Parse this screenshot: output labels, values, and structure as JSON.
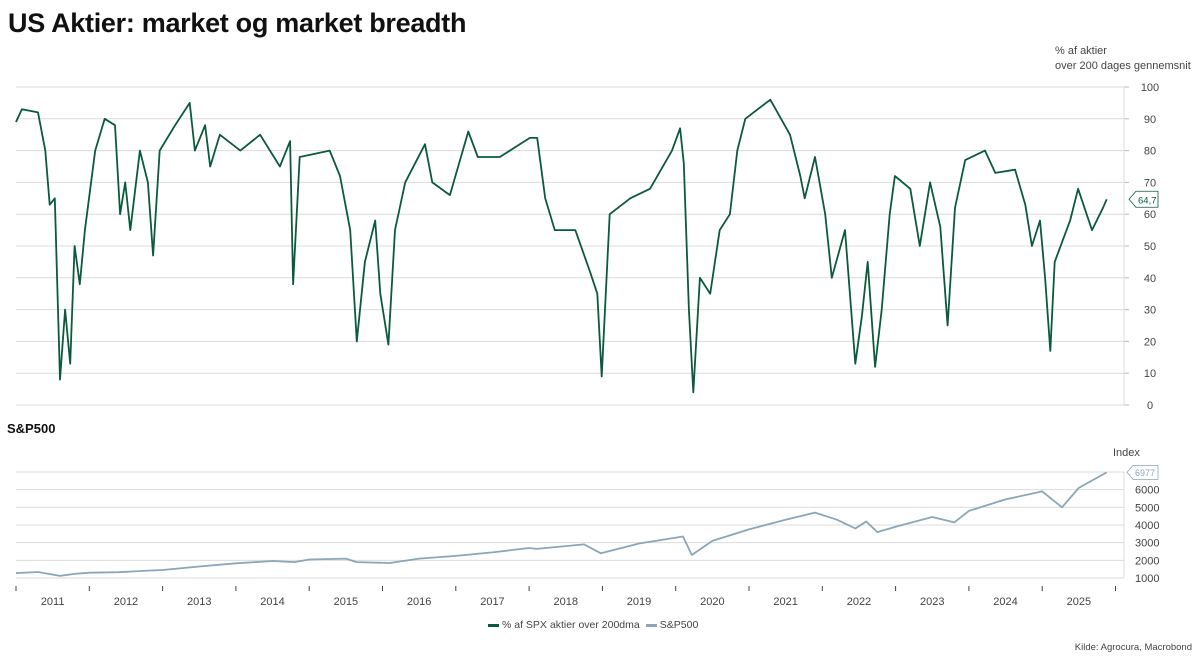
{
  "title": "US Aktier: market og market breadth",
  "source": "Kilde: Agrocura, Macrobond",
  "legend": [
    "% af SPX aktier over 200dma",
    "S&P500"
  ],
  "colors": {
    "breadth": "#0b5a3c",
    "spx": "#8aa6b8"
  },
  "chart_data": [
    {
      "type": "line",
      "title": "",
      "ylabel_line1": "% af aktier",
      "ylabel_line2": "over 200 dages gennemsnit",
      "ylim": [
        0,
        100
      ],
      "yticks": [
        0,
        10,
        20,
        30,
        40,
        50,
        60,
        70,
        80,
        90,
        100
      ],
      "grid": true,
      "last_value_label": "64,7",
      "series": [
        {
          "name": "% af SPX aktier over 200dma",
          "points": [
            [
              2011.0,
              89
            ],
            [
              2011.08,
              93
            ],
            [
              2011.3,
              92
            ],
            [
              2011.4,
              80
            ],
            [
              2011.46,
              63
            ],
            [
              2011.53,
              65
            ],
            [
              2011.6,
              8
            ],
            [
              2011.67,
              30
            ],
            [
              2011.74,
              13
            ],
            [
              2011.8,
              50
            ],
            [
              2011.87,
              38
            ],
            [
              2011.94,
              55
            ],
            [
              2012.08,
              80
            ],
            [
              2012.21,
              90
            ],
            [
              2012.35,
              88
            ],
            [
              2012.42,
              60
            ],
            [
              2012.49,
              70
            ],
            [
              2012.56,
              55
            ],
            [
              2012.69,
              80
            ],
            [
              2012.8,
              70
            ],
            [
              2012.87,
              47
            ],
            [
              2012.96,
              80
            ],
            [
              2013.17,
              88
            ],
            [
              2013.37,
              95
            ],
            [
              2013.44,
              80
            ],
            [
              2013.58,
              88
            ],
            [
              2013.65,
              75
            ],
            [
              2013.78,
              85
            ],
            [
              2014.06,
              80
            ],
            [
              2014.33,
              85
            ],
            [
              2014.6,
              75
            ],
            [
              2014.74,
              83
            ],
            [
              2014.78,
              38
            ],
            [
              2014.87,
              78
            ],
            [
              2015.28,
              80
            ],
            [
              2015.42,
              72
            ],
            [
              2015.56,
              55
            ],
            [
              2015.65,
              20
            ],
            [
              2015.76,
              45
            ],
            [
              2015.9,
              58
            ],
            [
              2015.97,
              35
            ],
            [
              2016.08,
              19
            ],
            [
              2016.17,
              55
            ],
            [
              2016.31,
              70
            ],
            [
              2016.58,
              82
            ],
            [
              2016.68,
              70
            ],
            [
              2016.92,
              66
            ],
            [
              2017.17,
              86
            ],
            [
              2017.3,
              78
            ],
            [
              2017.6,
              78
            ],
            [
              2018.01,
              84
            ],
            [
              2018.11,
              84
            ],
            [
              2018.22,
              65
            ],
            [
              2018.35,
              55
            ],
            [
              2018.63,
              55
            ],
            [
              2018.83,
              42
            ],
            [
              2018.93,
              35
            ],
            [
              2018.99,
              9
            ],
            [
              2019.1,
              60
            ],
            [
              2019.38,
              65
            ],
            [
              2019.65,
              68
            ],
            [
              2019.95,
              80
            ],
            [
              2020.06,
              87
            ],
            [
              2020.11,
              76
            ],
            [
              2020.18,
              30
            ],
            [
              2020.24,
              4
            ],
            [
              2020.33,
              40
            ],
            [
              2020.47,
              35
            ],
            [
              2020.6,
              55
            ],
            [
              2020.74,
              60
            ],
            [
              2020.84,
              80
            ],
            [
              2020.95,
              90
            ],
            [
              2021.29,
              96
            ],
            [
              2021.56,
              85
            ],
            [
              2021.7,
              72
            ],
            [
              2021.76,
              65
            ],
            [
              2021.9,
              78
            ],
            [
              2022.04,
              60
            ],
            [
              2022.13,
              40
            ],
            [
              2022.31,
              55
            ],
            [
              2022.45,
              13
            ],
            [
              2022.54,
              28
            ],
            [
              2022.62,
              45
            ],
            [
              2022.72,
              12
            ],
            [
              2022.81,
              30
            ],
            [
              2022.92,
              60
            ],
            [
              2022.99,
              72
            ],
            [
              2023.2,
              68
            ],
            [
              2023.33,
              50
            ],
            [
              2023.47,
              70
            ],
            [
              2023.61,
              56
            ],
            [
              2023.71,
              25
            ],
            [
              2023.81,
              62
            ],
            [
              2023.95,
              77
            ],
            [
              2024.22,
              80
            ],
            [
              2024.36,
              73
            ],
            [
              2024.63,
              74
            ],
            [
              2024.77,
              63
            ],
            [
              2024.86,
              50
            ],
            [
              2024.97,
              58
            ],
            [
              2025.04,
              40
            ],
            [
              2025.11,
              17
            ],
            [
              2025.17,
              45
            ],
            [
              2025.38,
              58
            ],
            [
              2025.49,
              68
            ],
            [
              2025.68,
              55
            ],
            [
              2025.83,
              62
            ],
            [
              2025.88,
              64.7
            ]
          ]
        }
      ]
    },
    {
      "type": "line",
      "title": "S&P500",
      "ylabel": "Index",
      "ylim": [
        1000,
        7000
      ],
      "yticks": [
        1000,
        2000,
        3000,
        4000,
        5000,
        6000
      ],
      "grid": true,
      "last_value_label": "6977",
      "xticks": [
        "2011",
        "2012",
        "2013",
        "2014",
        "2015",
        "2016",
        "2017",
        "2018",
        "2019",
        "2020",
        "2021",
        "2022",
        "2023",
        "2024",
        "2025"
      ],
      "series": [
        {
          "name": "S&P500",
          "points": [
            [
              2011.0,
              1280
            ],
            [
              2011.3,
              1340
            ],
            [
              2011.6,
              1120
            ],
            [
              2011.8,
              1230
            ],
            [
              2012.0,
              1300
            ],
            [
              2012.4,
              1330
            ],
            [
              2012.8,
              1420
            ],
            [
              2013.0,
              1450
            ],
            [
              2013.5,
              1650
            ],
            [
              2014.0,
              1830
            ],
            [
              2014.5,
              1960
            ],
            [
              2014.8,
              1900
            ],
            [
              2015.0,
              2050
            ],
            [
              2015.5,
              2100
            ],
            [
              2015.65,
              1900
            ],
            [
              2016.1,
              1850
            ],
            [
              2016.5,
              2100
            ],
            [
              2017.0,
              2250
            ],
            [
              2017.5,
              2450
            ],
            [
              2018.0,
              2700
            ],
            [
              2018.1,
              2650
            ],
            [
              2018.75,
              2900
            ],
            [
              2018.98,
              2400
            ],
            [
              2019.5,
              2950
            ],
            [
              2020.1,
              3350
            ],
            [
              2020.22,
              2300
            ],
            [
              2020.5,
              3100
            ],
            [
              2021.0,
              3750
            ],
            [
              2021.5,
              4300
            ],
            [
              2021.9,
              4700
            ],
            [
              2022.2,
              4300
            ],
            [
              2022.45,
              3800
            ],
            [
              2022.6,
              4200
            ],
            [
              2022.75,
              3600
            ],
            [
              2023.0,
              3900
            ],
            [
              2023.5,
              4450
            ],
            [
              2023.8,
              4150
            ],
            [
              2024.0,
              4800
            ],
            [
              2024.5,
              5450
            ],
            [
              2025.0,
              5900
            ],
            [
              2025.27,
              5000
            ],
            [
              2025.5,
              6100
            ],
            [
              2025.88,
              6977
            ]
          ]
        }
      ]
    }
  ]
}
